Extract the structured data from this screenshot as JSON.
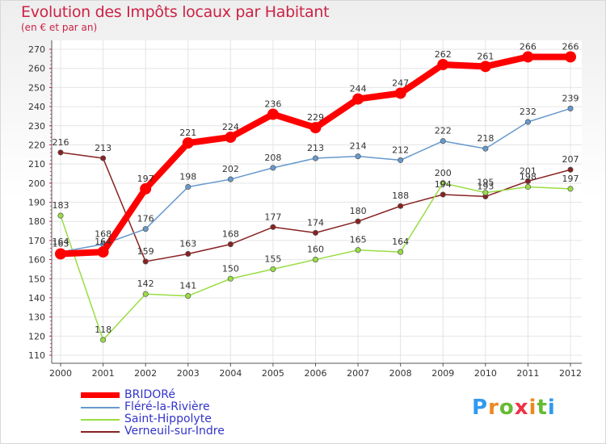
{
  "title": "Evolution des Impôts locaux par Habitant",
  "subtitle": "(en € et par an)",
  "brand": "Proxiti",
  "chart_data": {
    "type": "line",
    "title": "Evolution des Impôts locaux par Habitant",
    "ylabel": "(en € et par an)",
    "ylim": [
      110,
      270
    ],
    "yticks": [
      110,
      120,
      130,
      140,
      150,
      160,
      170,
      180,
      190,
      200,
      210,
      220,
      230,
      240,
      250,
      260,
      270
    ],
    "categories": [
      "2000",
      "2001",
      "2002",
      "2003",
      "2004",
      "2005",
      "2006",
      "2007",
      "2008",
      "2009",
      "2010",
      "2011",
      "2012"
    ],
    "series": [
      {
        "name": "BRIDORé",
        "color": "#ff0000",
        "values": [
          163,
          164,
          197,
          221,
          224,
          236,
          229,
          244,
          247,
          262,
          261,
          266,
          266
        ]
      },
      {
        "name": "Fléré-la-Rivière",
        "color": "#6699cc",
        "values": [
          164,
          168,
          176,
          198,
          202,
          208,
          213,
          214,
          212,
          222,
          218,
          232,
          239
        ]
      },
      {
        "name": "Saint-Hippolyte",
        "color": "#99dd44",
        "values": [
          183,
          118,
          142,
          141,
          150,
          155,
          160,
          165,
          164,
          200,
          195,
          198,
          197
        ]
      },
      {
        "name": "Verneuil-sur-Indre",
        "color": "#882222",
        "values": [
          216,
          213,
          159,
          163,
          168,
          177,
          174,
          180,
          188,
          194,
          193,
          201,
          207
        ]
      }
    ]
  }
}
